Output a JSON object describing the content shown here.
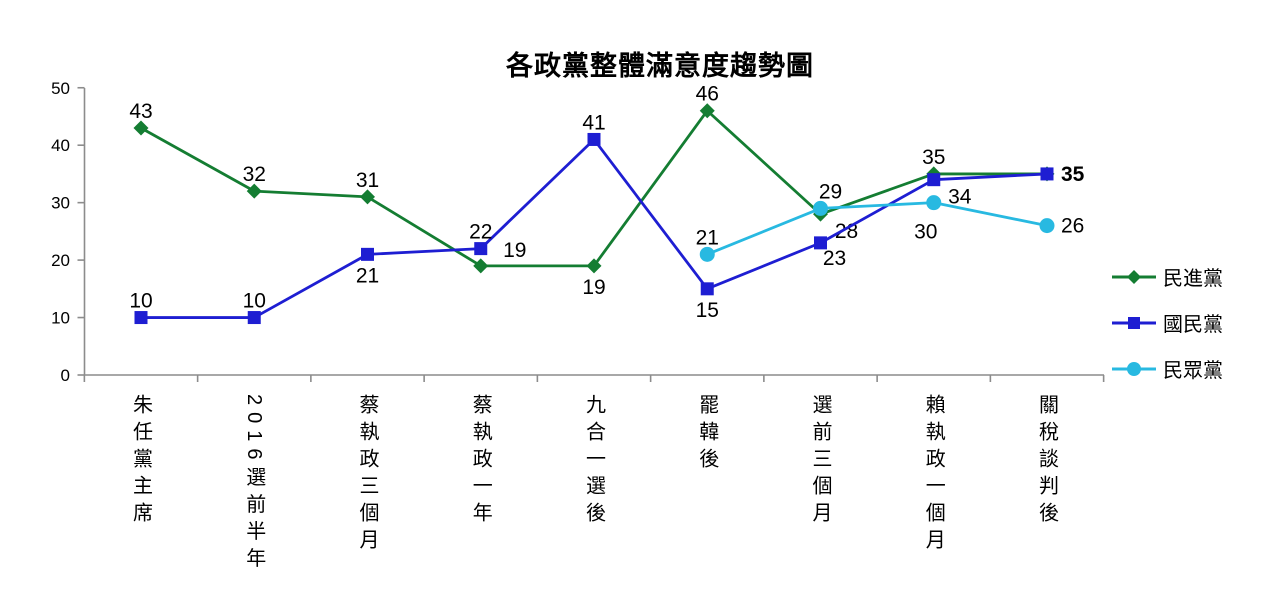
{
  "chart_data": {
    "type": "line",
    "title": "各政黨整體滿意度趨勢圖",
    "categories": [
      "朱任黨主席",
      "2016選前半年",
      "蔡執政三個月",
      "蔡執政一年",
      "九合一選後",
      "罷韓後",
      "選前三個月",
      "賴執政一個月",
      "關稅談判後"
    ],
    "ylim": [
      0,
      50
    ],
    "yticks": [
      0,
      10,
      20,
      30,
      40,
      50
    ],
    "grid": false,
    "legend_position": "right",
    "axis_color": "#8c8c8c",
    "label_color": "#000000",
    "series": [
      {
        "key": "dpp",
        "name": "民進黨",
        "color": "#147d32",
        "marker": "diamond",
        "values": [
          43,
          32,
          31,
          19,
          19,
          46,
          28,
          35,
          35
        ],
        "label_pos": [
          "above",
          "above",
          "above",
          "above-right",
          "below",
          "above",
          "below-right",
          "above",
          "hidden"
        ]
      },
      {
        "key": "kmt",
        "name": "國民黨",
        "color": "#1e1ed2",
        "marker": "square",
        "values": [
          10,
          10,
          21,
          22,
          41,
          15,
          23,
          34,
          35
        ],
        "label_pos": [
          "above",
          "above",
          "below",
          "above",
          "above",
          "below",
          {
            "pos": "below",
            "dx": 14,
            "dy": -6
          },
          "below-right",
          "right-bold"
        ]
      },
      {
        "key": "tpp",
        "name": "民眾黨",
        "color": "#28b9e1",
        "marker": "circle",
        "values": [
          null,
          null,
          null,
          null,
          null,
          21,
          29,
          30,
          26
        ],
        "label_pos": [
          "hidden",
          "hidden",
          "hidden",
          "hidden",
          "hidden",
          "above",
          {
            "pos": "above",
            "dx": 10
          },
          {
            "pos": "below",
            "dx": -8,
            "dy": 8
          },
          "right"
        ]
      }
    ]
  }
}
